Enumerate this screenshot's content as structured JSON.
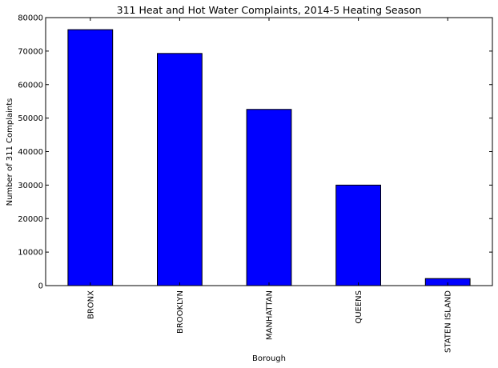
{
  "chart_data": {
    "type": "bar",
    "title": "311 Heat and Hot Water Complaints, 2014-5 Heating Season",
    "xlabel": "Borough",
    "ylabel": "Number of 311 Complaints",
    "categories": [
      "BRONX",
      "BROOKLYN",
      "MANHATTAN",
      "QUEENS",
      "STATEN ISLAND"
    ],
    "values": [
      76400,
      69300,
      52600,
      30000,
      2100
    ],
    "ylim": [
      0,
      80000
    ],
    "yticks": [
      0,
      10000,
      20000,
      30000,
      40000,
      50000,
      60000,
      70000,
      80000
    ],
    "grid": false,
    "legend": "none",
    "bar_color": "#0000ff",
    "edge_color": "#000000"
  }
}
